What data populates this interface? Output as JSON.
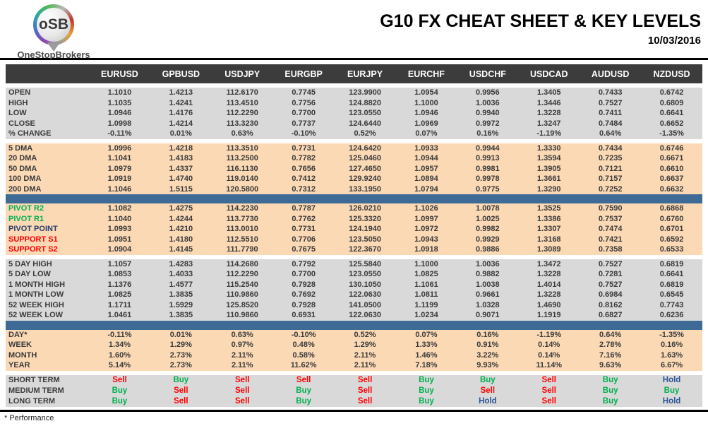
{
  "brand": {
    "logo_text": "oSB",
    "name": "OneStopBrokers"
  },
  "header": {
    "title": "G10 FX CHEAT SHEET & KEY LEVELS",
    "date": "10/03/2016"
  },
  "footer": {
    "note": "* Performance"
  },
  "colors": {
    "header_bar": "#3c3c3c",
    "section_gray": "#d9d9d9",
    "section_peach": "#fbd9b5",
    "divider_blue": "#3e6a96",
    "buy_green": "#00b050",
    "sell_red": "#ff0000",
    "hold_navy": "#2b5597",
    "pivot_r_green": "#00b050",
    "pivot_point_navy": "#263e6a",
    "support_red": "#ff0000"
  },
  "table": {
    "columns": [
      "EURUSD",
      "GPBUSD",
      "USDJPY",
      "EURGBP",
      "EURJPY",
      "EURCHF",
      "USDCHF",
      "USDCAD",
      "AUDUSD",
      "NZDUSD"
    ],
    "sections": [
      {
        "type": "rows",
        "bg": "gray",
        "gap": true,
        "rows": [
          {
            "label": "OPEN",
            "values": [
              "1.1010",
              "1.4213",
              "112.6170",
              "0.7745",
              "123.9900",
              "1.0954",
              "0.9956",
              "1.3405",
              "0.7433",
              "0.6742"
            ]
          },
          {
            "label": "HIGH",
            "values": [
              "1.1035",
              "1.4241",
              "113.4510",
              "0.7756",
              "124.8820",
              "1.1000",
              "1.0036",
              "1.3446",
              "0.7527",
              "0.6809"
            ]
          },
          {
            "label": "LOW",
            "values": [
              "1.0946",
              "1.4176",
              "112.2290",
              "0.7700",
              "123.0550",
              "1.0946",
              "0.9940",
              "1.3228",
              "0.7411",
              "0.6641"
            ]
          },
          {
            "label": "CLOSE",
            "values": [
              "1.0998",
              "1.4214",
              "113.3230",
              "0.7737",
              "124.6440",
              "1.0969",
              "0.9972",
              "1.3247",
              "0.7484",
              "0.6652"
            ]
          },
          {
            "label": "% CHANGE",
            "values": [
              "-0.11%",
              "0.01%",
              "0.63%",
              "-0.10%",
              "0.52%",
              "0.07%",
              "0.16%",
              "-1.19%",
              "0.64%",
              "-1.35%"
            ]
          }
        ]
      },
      {
        "type": "rows",
        "bg": "peach",
        "gap": true,
        "rows": [
          {
            "label": "5 DMA",
            "values": [
              "1.0996",
              "1.4218",
              "113.3510",
              "0.7731",
              "124.6420",
              "1.0933",
              "0.9944",
              "1.3330",
              "0.7434",
              "0.6746"
            ]
          },
          {
            "label": "20 DMA",
            "values": [
              "1.1041",
              "1.4183",
              "113.2500",
              "0.7782",
              "125.0460",
              "1.0944",
              "0.9913",
              "1.3594",
              "0.7235",
              "0.6671"
            ]
          },
          {
            "label": "50 DMA",
            "values": [
              "1.0979",
              "1.4337",
              "116.1130",
              "0.7656",
              "127.4650",
              "1.0957",
              "0.9981",
              "1.3905",
              "0.7121",
              "0.6610"
            ]
          },
          {
            "label": "100 DMA",
            "values": [
              "1.0919",
              "1.4740",
              "119.0140",
              "0.7412",
              "129.9240",
              "1.0894",
              "0.9978",
              "1.3661",
              "0.7157",
              "0.6637"
            ]
          },
          {
            "label": "200 DMA",
            "values": [
              "1.1046",
              "1.5115",
              "120.5800",
              "0.7312",
              "133.1950",
              "1.0794",
              "0.9775",
              "1.3290",
              "0.7252",
              "0.6632"
            ]
          }
        ]
      },
      {
        "type": "bar"
      },
      {
        "type": "rows",
        "bg": "peach",
        "gap": false,
        "rows": [
          {
            "label": "PIVOT R2",
            "label_color": "green",
            "values": [
              "1.1082",
              "1.4275",
              "114.2230",
              "0.7787",
              "126.0210",
              "1.1026",
              "1.0078",
              "1.3525",
              "0.7590",
              "0.6868"
            ]
          },
          {
            "label": "PIVOT R1",
            "label_color": "green",
            "values": [
              "1.1040",
              "1.4244",
              "113.7730",
              "0.7762",
              "125.3320",
              "1.0997",
              "1.0025",
              "1.3386",
              "0.7537",
              "0.6760"
            ]
          },
          {
            "label": "PIVOT POINT",
            "label_color": "navy",
            "values": [
              "1.0993",
              "1.4210",
              "113.0010",
              "0.7731",
              "124.1940",
              "1.0972",
              "0.9982",
              "1.3307",
              "0.7474",
              "0.6701"
            ]
          },
          {
            "label": "SUPPORT S1",
            "label_color": "red",
            "values": [
              "1.0951",
              "1.4180",
              "112.5510",
              "0.7706",
              "123.5050",
              "1.0943",
              "0.9929",
              "1.3168",
              "0.7421",
              "0.6592"
            ]
          },
          {
            "label": "SUPPORT S2",
            "label_color": "red",
            "values": [
              "1.0904",
              "1.4145",
              "111.7790",
              "0.7675",
              "122.3670",
              "1.0918",
              "0.9886",
              "1.3089",
              "0.7358",
              "0.6533"
            ]
          }
        ]
      },
      {
        "type": "rows",
        "bg": "gray",
        "gap": true,
        "rows": [
          {
            "label": "5 DAY HIGH",
            "values": [
              "1.1057",
              "1.4283",
              "114.2680",
              "0.7792",
              "125.5840",
              "1.1000",
              "1.0036",
              "1.3472",
              "0.7527",
              "0.6819"
            ]
          },
          {
            "label": "5 DAY LOW",
            "values": [
              "1.0853",
              "1.4033",
              "112.2290",
              "0.7700",
              "123.0550",
              "1.0825",
              "0.9882",
              "1.3228",
              "0.7281",
              "0.6641"
            ]
          },
          {
            "label": "1 MONTH HIGH",
            "values": [
              "1.1376",
              "1.4577",
              "115.2540",
              "0.7928",
              "130.1050",
              "1.1061",
              "1.0038",
              "1.4014",
              "0.7527",
              "0.6819"
            ]
          },
          {
            "label": "1 MONTH LOW",
            "values": [
              "1.0825",
              "1.3835",
              "110.9860",
              "0.7692",
              "122.0630",
              "1.0811",
              "0.9661",
              "1.3228",
              "0.6984",
              "0.6545"
            ]
          },
          {
            "label": "52 WEEK HIGH",
            "values": [
              "1.1711",
              "1.5929",
              "125.8520",
              "0.7928",
              "141.0500",
              "1.1199",
              "1.0328",
              "1.4690",
              "0.8162",
              "0.7743"
            ]
          },
          {
            "label": "52 WEEK LOW",
            "values": [
              "1.0461",
              "1.3835",
              "110.9860",
              "0.6931",
              "122.0630",
              "1.0234",
              "0.9071",
              "1.1919",
              "0.6827",
              "0.6236"
            ]
          }
        ]
      },
      {
        "type": "bar"
      },
      {
        "type": "rows",
        "bg": "peach",
        "gap": false,
        "rows": [
          {
            "label": "DAY*",
            "values": [
              "-0.11%",
              "0.01%",
              "0.63%",
              "-0.10%",
              "0.52%",
              "0.07%",
              "0.16%",
              "-1.19%",
              "0.64%",
              "-1.35%"
            ]
          },
          {
            "label": "WEEK",
            "values": [
              "1.34%",
              "1.29%",
              "0.97%",
              "0.48%",
              "1.29%",
              "1.33%",
              "0.91%",
              "0.14%",
              "2.78%",
              "0.16%"
            ]
          },
          {
            "label": "MONTH",
            "values": [
              "1.60%",
              "2.73%",
              "2.11%",
              "0.58%",
              "2.11%",
              "1.46%",
              "3.22%",
              "0.14%",
              "7.16%",
              "1.63%"
            ]
          },
          {
            "label": "YEAR",
            "values": [
              "5.14%",
              "2.73%",
              "2.11%",
              "11.62%",
              "2.11%",
              "7.18%",
              "9.93%",
              "11.14%",
              "9.63%",
              "6.67%"
            ]
          }
        ]
      },
      {
        "type": "rows",
        "bg": "gray",
        "gap": true,
        "signals": true,
        "rows": [
          {
            "label": "SHORT TERM",
            "values": [
              "Sell",
              "Buy",
              "Sell",
              "Sell",
              "Sell",
              "Buy",
              "Buy",
              "Sell",
              "Buy",
              "Hold"
            ]
          },
          {
            "label": "MEDIUM TERM",
            "values": [
              "Buy",
              "Sell",
              "Sell",
              "Buy",
              "Sell",
              "Buy",
              "Sell",
              "Sell",
              "Buy",
              "Buy"
            ]
          },
          {
            "label": "LONG TERM",
            "values": [
              "Buy",
              "Sell",
              "Sell",
              "Buy",
              "Sell",
              "Buy",
              "Hold",
              "Sell",
              "Buy",
              "Hold"
            ]
          }
        ]
      }
    ]
  }
}
